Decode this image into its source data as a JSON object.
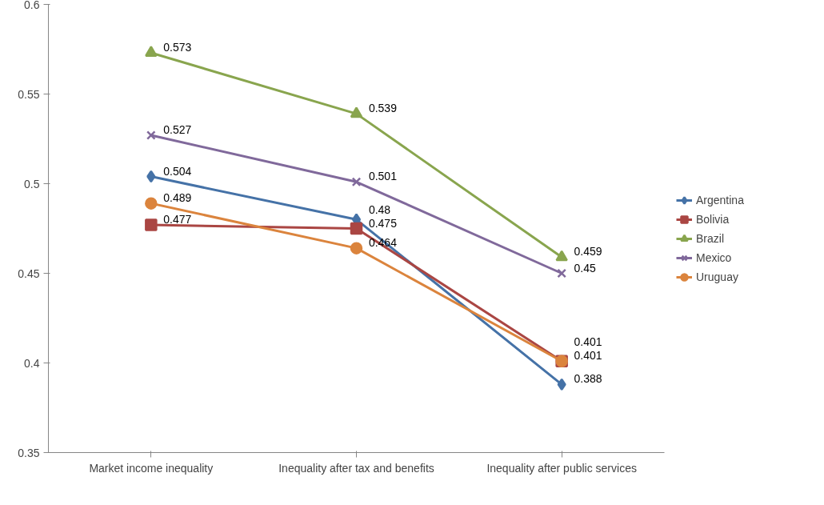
{
  "chart_data": {
    "type": "line",
    "categories": [
      "Market income inequality",
      "Inequality after tax and benefits",
      "Inequality after public services"
    ],
    "series": [
      {
        "name": "Argentina",
        "color": "#4572a7",
        "marker": "diamond",
        "values": [
          0.504,
          0.48,
          0.388
        ]
      },
      {
        "name": "Bolivia",
        "color": "#aa4643",
        "marker": "square",
        "values": [
          0.477,
          0.475,
          0.401
        ]
      },
      {
        "name": "Brazil",
        "color": "#89a54e",
        "marker": "triangle",
        "values": [
          0.573,
          0.539,
          0.459
        ]
      },
      {
        "name": "Mexico",
        "color": "#80699b",
        "marker": "cross",
        "values": [
          0.527,
          0.501,
          0.45
        ]
      },
      {
        "name": "Uruguay",
        "color": "#db843d",
        "marker": "circle",
        "values": [
          0.489,
          0.464,
          0.401
        ]
      }
    ],
    "ylim": [
      0.35,
      0.6
    ],
    "yticks": [
      0.35,
      0.4,
      0.45,
      0.5,
      0.55,
      0.6
    ],
    "grid": false,
    "legend": "right",
    "data_labels": true,
    "line_style": "solid"
  }
}
